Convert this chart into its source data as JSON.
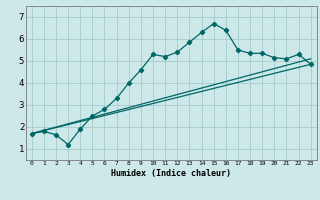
{
  "xlabel": "Humidex (Indice chaleur)",
  "bg_color": "#cce8e8",
  "grid_color": "#aacfcf",
  "line_color": "#006666",
  "xlim": [
    -0.5,
    23.5
  ],
  "ylim": [
    0.5,
    7.5
  ],
  "xticks": [
    0,
    1,
    2,
    3,
    4,
    5,
    6,
    7,
    8,
    9,
    10,
    11,
    12,
    13,
    14,
    15,
    16,
    17,
    18,
    19,
    20,
    21,
    22,
    23
  ],
  "yticks": [
    1,
    2,
    3,
    4,
    5,
    6,
    7
  ],
  "line1_x": [
    0,
    1,
    2,
    3,
    4,
    5,
    6,
    7,
    8,
    9,
    10,
    11,
    12,
    13,
    14,
    15,
    16,
    17,
    18,
    19,
    20,
    21,
    22,
    23
  ],
  "line1_y": [
    1.7,
    1.8,
    1.65,
    1.2,
    1.9,
    2.5,
    2.8,
    3.3,
    4.0,
    4.6,
    5.3,
    5.2,
    5.4,
    5.85,
    6.3,
    6.7,
    6.4,
    5.5,
    5.35,
    5.35,
    5.15,
    5.1,
    5.3,
    4.85
  ],
  "line2_x": [
    0,
    23
  ],
  "line2_y": [
    1.7,
    5.1
  ],
  "line3_x": [
    0,
    23
  ],
  "line3_y": [
    1.7,
    4.85
  ]
}
